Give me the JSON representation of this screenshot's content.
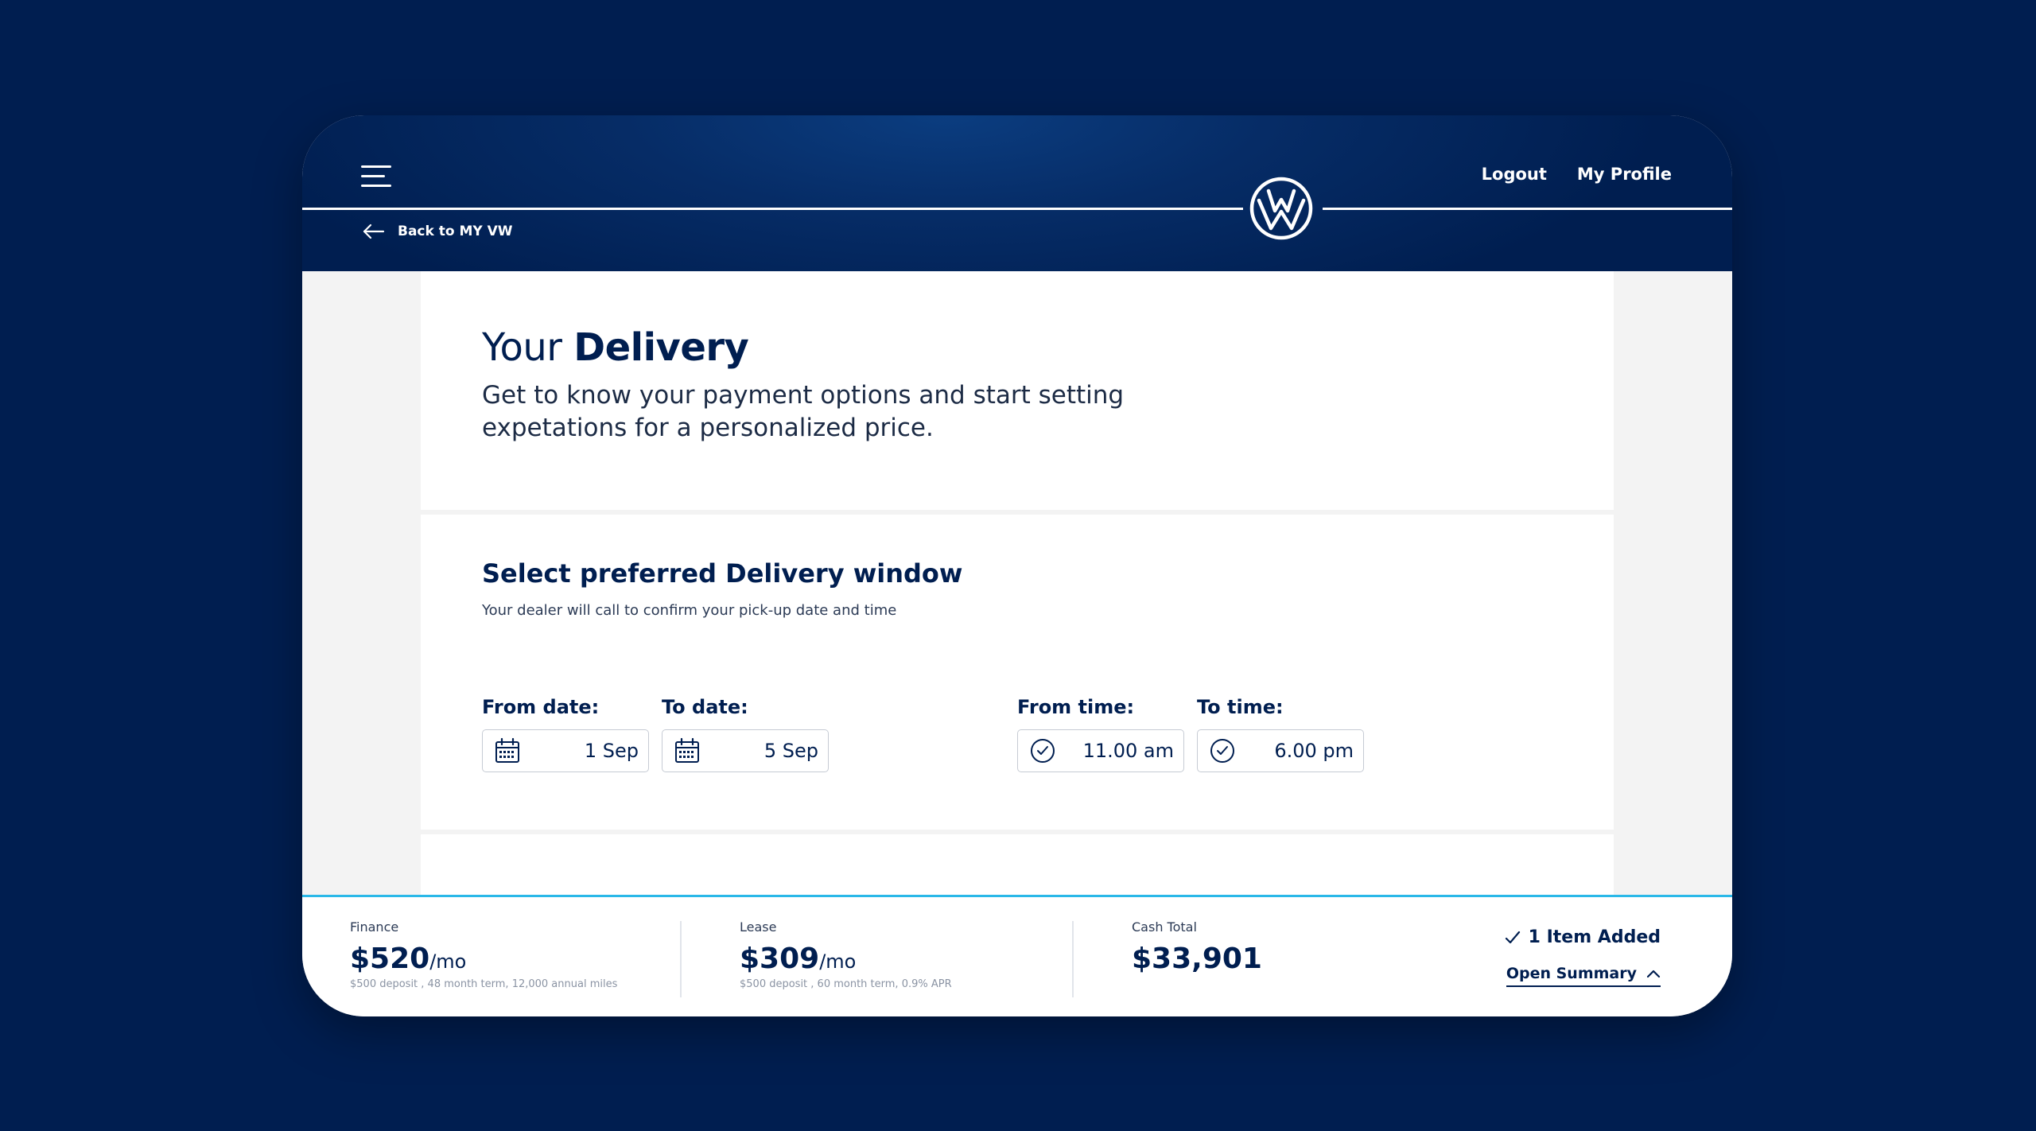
{
  "header": {
    "menu_icon": "hamburger-menu-icon",
    "logo": "vw-logo",
    "nav": {
      "logout": "Logout",
      "profile": "My Profile"
    },
    "back_label": "Back to MY VW"
  },
  "intro": {
    "title_light": "Your",
    "title_bold": "Delivery",
    "subtitle": "Get to know your payment options and start setting expetations for a personalized price."
  },
  "delivery": {
    "title": "Select preferred Delivery window",
    "subtitle": "Your dealer will call to confirm your pick-up date and time",
    "fields": [
      {
        "label": "From date:",
        "value": "1 Sep",
        "icon": "calendar-icon"
      },
      {
        "label": "To date:",
        "value": "5 Sep",
        "icon": "calendar-icon"
      },
      {
        "label": "From time:",
        "value": "11.00 am",
        "icon": "clock-icon"
      },
      {
        "label": "To time:",
        "value": "6.00 pm",
        "icon": "clock-icon"
      }
    ]
  },
  "summary": {
    "finance": {
      "label": "Finance",
      "price": "$520",
      "per": "/mo",
      "note": "$500 deposit , 48 month term, 12,000 annual miles"
    },
    "lease": {
      "label": "Lease",
      "price": "$309",
      "per": "/mo",
      "note": "$500 deposit , 60 month term, 0.9% APR"
    },
    "cash": {
      "label": "Cash Total",
      "price": "$33,901"
    },
    "added": "1 Item Added",
    "open_summary": "Open Summary"
  },
  "colors": {
    "brand_navy": "#001e50",
    "accent_cyan": "#2ab8e8"
  }
}
